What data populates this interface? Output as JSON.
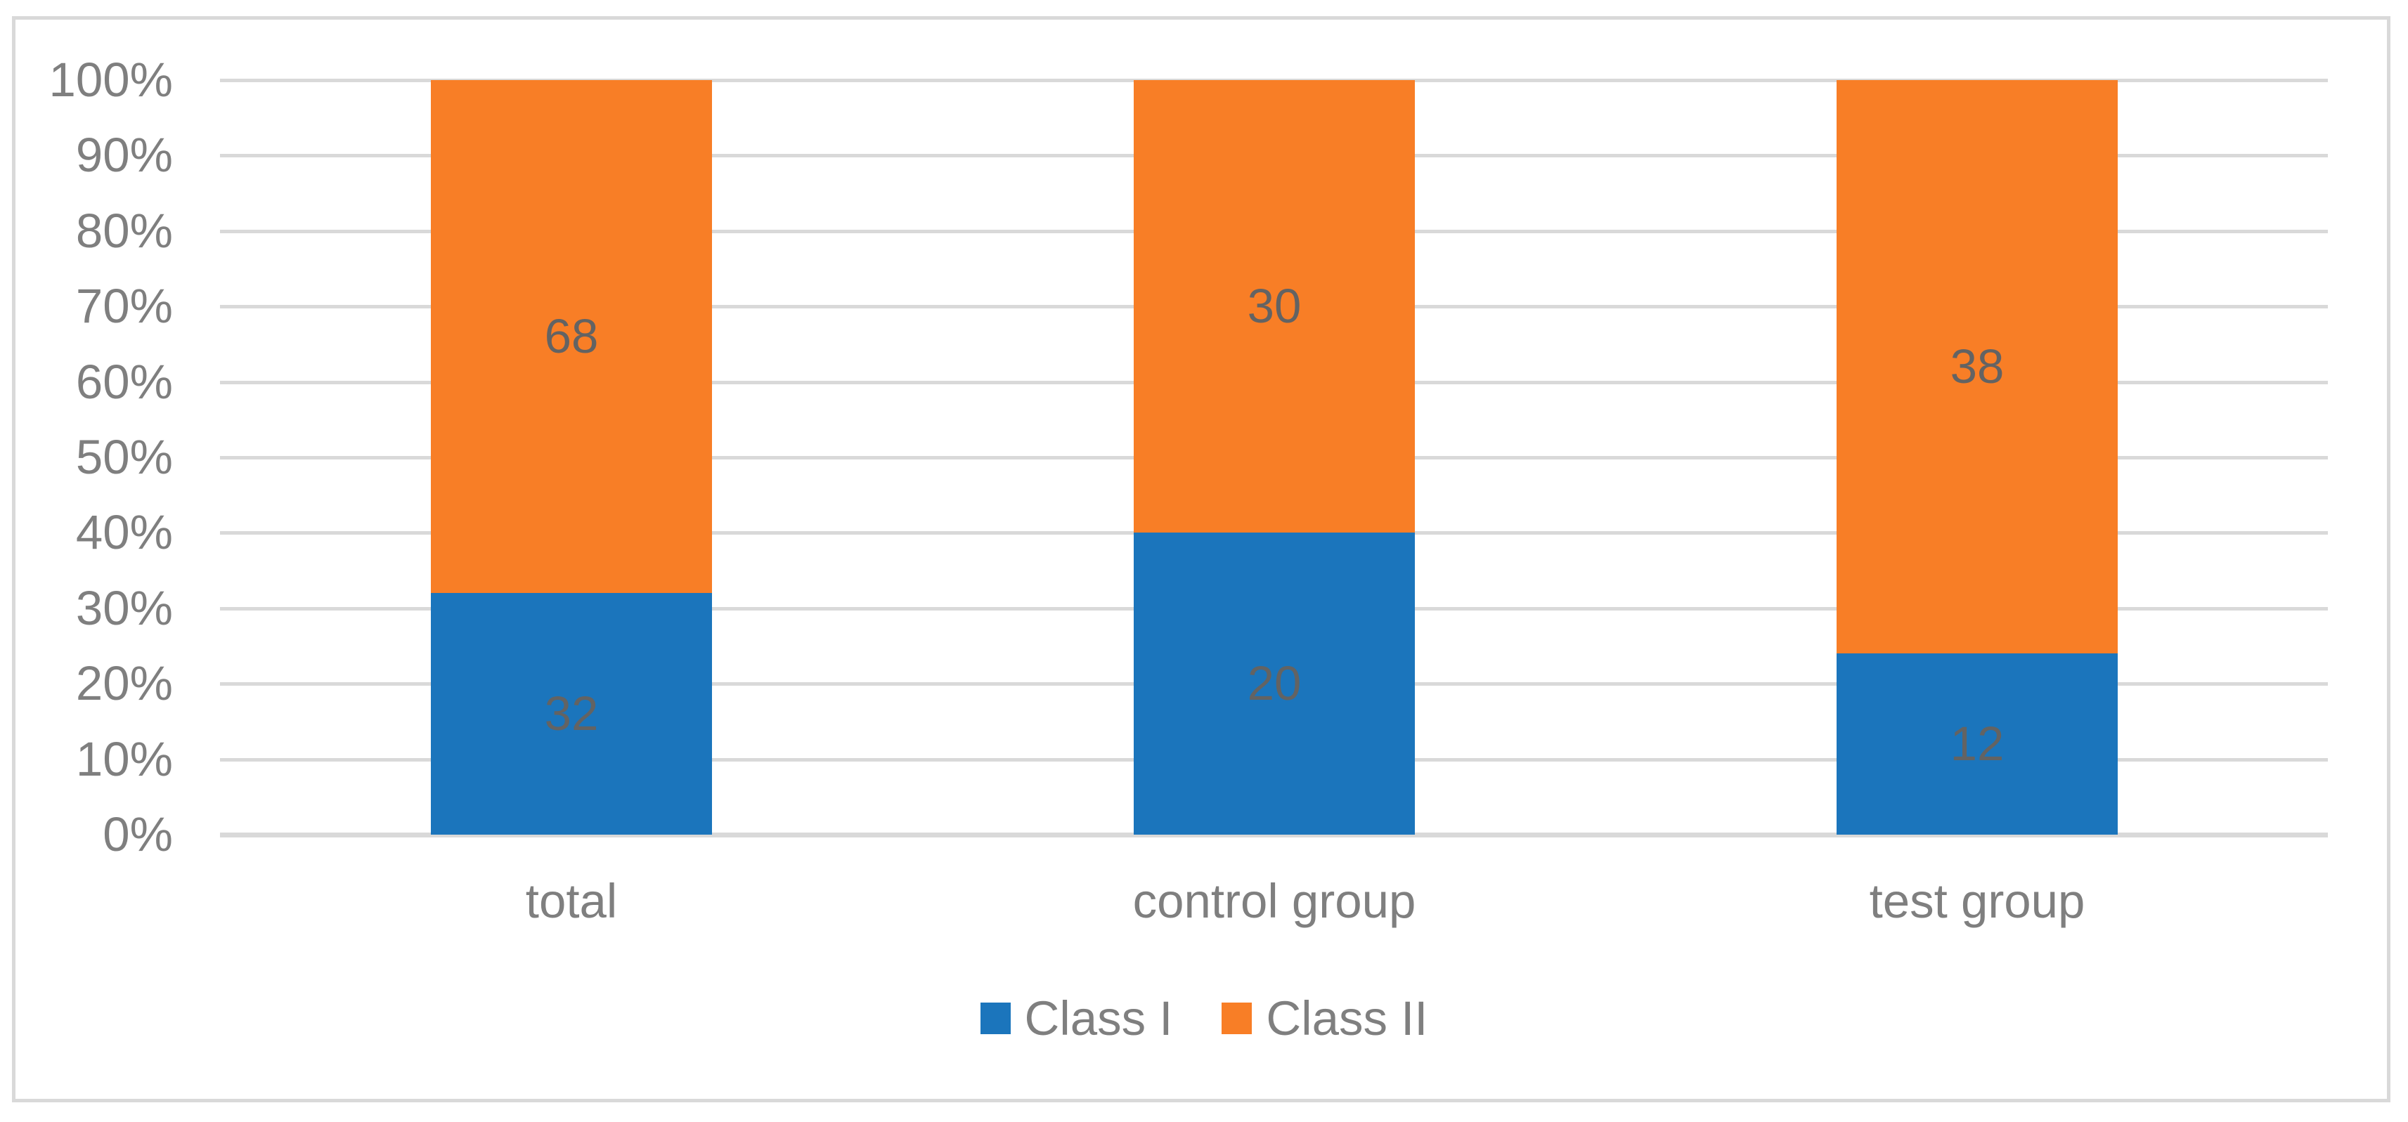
{
  "chart_data": {
    "type": "bar",
    "variant": "stacked-100-percent-column",
    "title": "",
    "xlabel": "",
    "ylabel": "",
    "categories": [
      "total",
      "control group",
      "test group"
    ],
    "series": [
      {
        "name": "Class I",
        "color": "#1B75BC",
        "values": [
          32,
          20,
          12
        ]
      },
      {
        "name": "Class II",
        "color": "#F87E26",
        "values": [
          68,
          30,
          38
        ]
      }
    ],
    "y_axis": {
      "min": 0,
      "max": 100,
      "tick_step": 10,
      "ticks": [
        "0%",
        "10%",
        "20%",
        "30%",
        "40%",
        "50%",
        "60%",
        "70%",
        "80%",
        "90%",
        "100%"
      ]
    },
    "grid": true,
    "data_labels_shown": true,
    "legend_position": "bottom"
  },
  "legend": {
    "items": [
      {
        "label": "Class I",
        "color": "#1B75BC"
      },
      {
        "label": "Class II",
        "color": "#F87E26"
      }
    ]
  },
  "colors": {
    "background": "#FFFFFF",
    "figure_border": "#D9D9D9",
    "gridline": "#D9D9D9",
    "axis_line": "#D9D9D9",
    "tick_label_text": "#7F7F7F",
    "category_label_text": "#7F7F7F",
    "legend_text": "#7F7F7F",
    "data_label_text": "#636363",
    "series_class_i": "#1B75BC",
    "series_class_ii": "#F87E26"
  }
}
